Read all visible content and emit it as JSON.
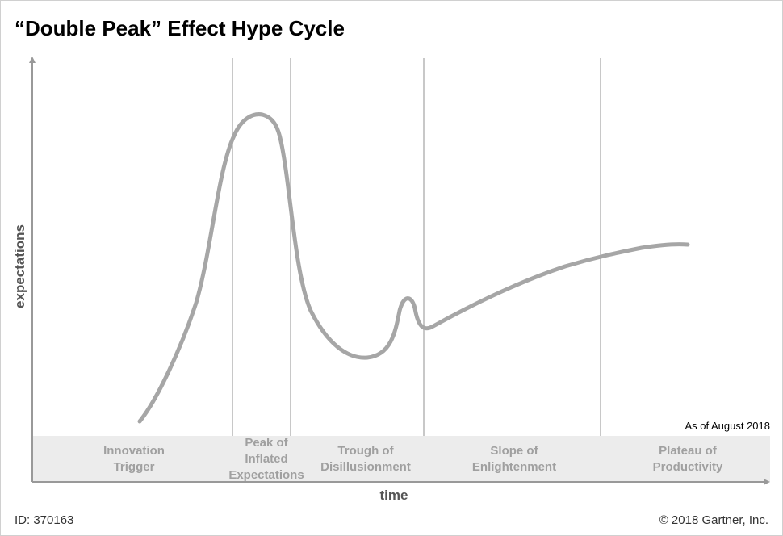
{
  "title": "“Double Peak” Effect Hype Cycle",
  "y_axis_label": "expectations",
  "x_axis_label": "time",
  "as_of": "As of August 2018",
  "phases": [
    [
      "Innovation",
      "Trigger"
    ],
    [
      "Peak of",
      "Inflated",
      "Expectations"
    ],
    [
      "Trough of",
      "Disillusionment"
    ],
    [
      "Slope of",
      "Enlightenment"
    ],
    [
      "Plateau of",
      "Productivity"
    ]
  ],
  "footer": {
    "id": "ID: 370163",
    "copyright": "© 2018 Gartner, Inc."
  }
}
